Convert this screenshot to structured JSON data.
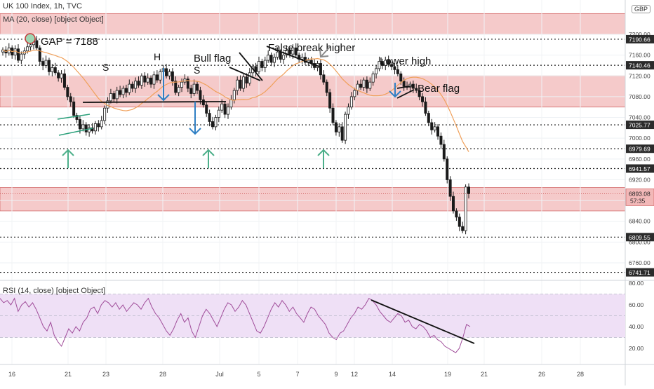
{
  "header": {
    "title": "UK 100 Index, 1h, TVC",
    "ma_legend": "MA (20, close) [object Object]",
    "rsi_legend": "RSI (14, close) [object Object]"
  },
  "colors": {
    "zone_fill": "#f2b8b8",
    "zone_edge": "#d46a6a",
    "ma_line": "#f0a05a",
    "candle": "#1a1a1a",
    "arrow_green": "#4caf8a",
    "arrow_blue": "#2f7fc4",
    "arrow_gray": "#8a8a8a",
    "rsi_line": "#a04d9a",
    "rsi_band": "#efe0f6",
    "label_bg": "#2b2b2b"
  },
  "chart_data": [
    {
      "type": "candlestick",
      "series_name": "UK 100 Index",
      "currency": "GBP",
      "x_ticks": [
        "16",
        "21",
        "23",
        "28",
        "Jul",
        "5",
        "7",
        "9",
        "12",
        "14",
        "19",
        "21",
        "26",
        "28"
      ],
      "ylim": [
        6720,
        7240
      ],
      "y_ticks": [
        6760.0,
        6800.0,
        6840.0,
        6880.0,
        6920.0,
        6960.0,
        7000.0,
        7040.0,
        7080.0,
        7120.0,
        7160.0,
        7200.0
      ],
      "y_tick_labels": [
        "6760.00",
        "6800.00",
        "6840.00",
        "6880.00",
        "6920.00",
        "6960.00",
        "7000.00",
        "7040.00",
        "7080.00",
        "7120.00",
        "7160.00",
        "7200.00"
      ],
      "price_labels": [
        {
          "value": 7190.66,
          "text": "7190.66"
        },
        {
          "value": 7140.46,
          "text": "7140.46"
        },
        {
          "value": 7025.77,
          "text": "7025.77"
        },
        {
          "value": 6979.69,
          "text": "6979.69"
        },
        {
          "value": 6941.57,
          "text": "6941.57"
        },
        {
          "value": 6809.55,
          "text": "6809.55"
        },
        {
          "value": 6741.71,
          "text": "6741.71"
        }
      ],
      "current_price": {
        "value": 6893.08,
        "text": "6893.08",
        "countdown": "57:35"
      },
      "zones": [
        [
          7200,
          7240
        ],
        [
          7060,
          7120
        ],
        [
          6860,
          6905
        ]
      ],
      "horizontal_levels": [
        7190.66,
        7140.46,
        7025.77,
        6979.69,
        6941.57,
        6809.55,
        6741.71
      ],
      "ohlc_close": [
        7170,
        7164,
        7174,
        7160,
        7172,
        7150,
        7162,
        7168,
        7176,
        7180,
        7188,
        7174,
        7148,
        7140,
        7150,
        7128,
        7136,
        7126,
        7116,
        7124,
        7098,
        7080,
        7070,
        7044,
        7036,
        7018,
        7026,
        7012,
        7020,
        7014,
        7028,
        7022,
        7034,
        7058,
        7072,
        7086,
        7076,
        7092,
        7084,
        7096,
        7088,
        7104,
        7096,
        7110,
        7102,
        7120,
        7108,
        7116,
        7104,
        7122,
        7112,
        7128,
        7134,
        7120,
        7128,
        7110,
        7088,
        7098,
        7108,
        7114,
        7096,
        7086,
        7104,
        7092,
        7074,
        7064,
        7048,
        7032,
        7022,
        7040,
        7054,
        7066,
        7046,
        7060,
        7074,
        7092,
        7112,
        7096,
        7118,
        7106,
        7126,
        7138,
        7128,
        7148,
        7136,
        7150,
        7160,
        7146,
        7156,
        7166,
        7152,
        7160,
        7170,
        7162,
        7174,
        7160,
        7152,
        7156,
        7146,
        7150,
        7144,
        7136,
        7144,
        7122,
        7108,
        7088,
        7058,
        7030,
        7012,
        7022,
        6996,
        7046,
        7060,
        7080,
        7092,
        7104,
        7098,
        7112,
        7096,
        7108,
        7124,
        7134,
        7148,
        7140,
        7150,
        7142,
        7138,
        7132,
        7124,
        7110,
        7100,
        7098,
        7104,
        7096,
        7092,
        7080,
        7070,
        7048,
        7030,
        7016,
        7022,
        7004,
        6988,
        6960,
        6920,
        6888,
        6860,
        6848,
        6830,
        6822,
        6906,
        6893
      ]
    },
    {
      "type": "line",
      "series_name": "RSI",
      "ylim": [
        10,
        80
      ],
      "y_ticks": [
        20.0,
        40.0,
        60.0,
        80.0
      ],
      "y_tick_labels": [
        "20.00",
        "40.00",
        "60.00",
        "80.00"
      ],
      "band": [
        30,
        70
      ],
      "values": [
        66,
        62,
        64,
        60,
        66,
        54,
        60,
        63,
        58,
        62,
        56,
        48,
        40,
        36,
        44,
        32,
        26,
        22,
        30,
        38,
        34,
        40,
        36,
        44,
        48,
        56,
        58,
        52,
        60,
        64,
        62,
        58,
        62,
        56,
        60,
        54,
        58,
        62,
        60,
        56,
        62,
        66,
        58,
        52,
        48,
        42,
        36,
        32,
        38,
        46,
        52,
        44,
        48,
        36,
        30,
        40,
        50,
        56,
        52,
        46,
        40,
        48,
        56,
        62,
        60,
        54,
        58,
        64,
        60,
        52,
        44,
        36,
        34,
        40,
        48,
        56,
        62,
        58,
        64,
        60,
        54,
        58,
        52,
        48,
        44,
        52,
        58,
        56,
        50,
        46,
        42,
        34,
        30,
        28,
        34,
        36,
        42,
        48,
        52,
        58,
        56,
        60,
        66,
        64,
        60,
        54,
        50,
        46,
        44,
        48,
        52,
        50,
        44,
        46,
        40,
        38,
        42,
        40,
        36,
        30,
        32,
        28,
        26,
        22,
        20,
        18,
        16,
        20,
        30,
        42,
        40
      ]
    }
  ],
  "annotations": {
    "gap": "GAP = 7188",
    "s_left": "S",
    "head": "H",
    "s_right": "S",
    "bull_flag": "Bull flag",
    "false_break": "False break higher",
    "lower_high": "Lower high",
    "bear_flag": "Bear flag"
  }
}
